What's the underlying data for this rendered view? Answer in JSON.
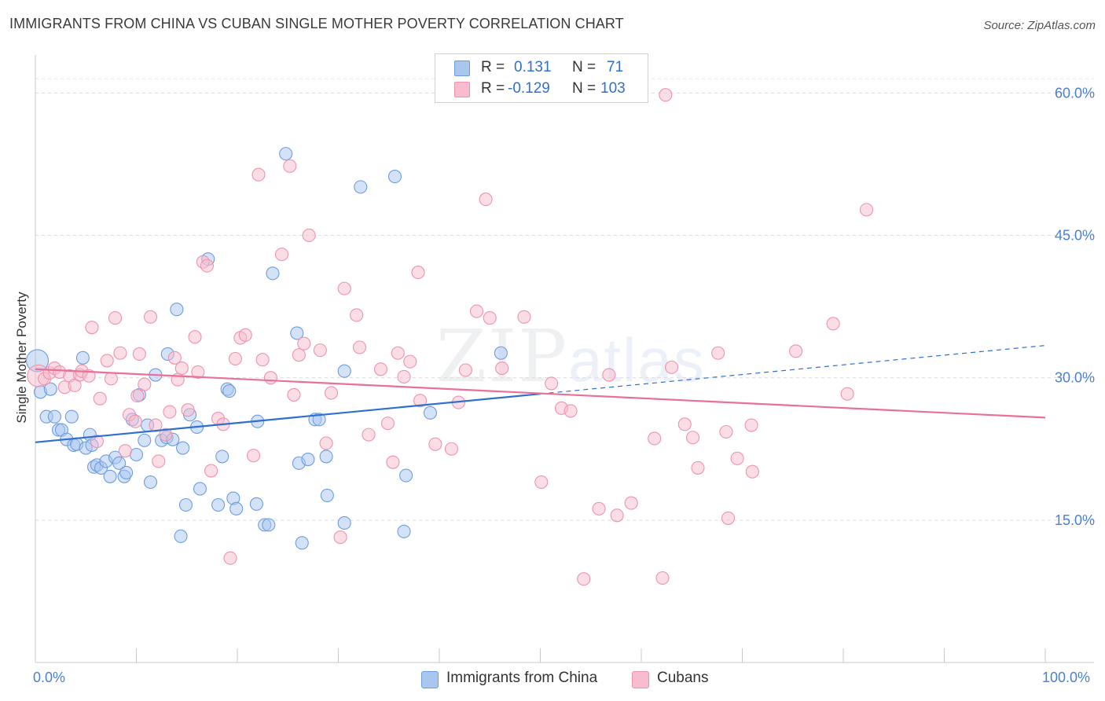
{
  "title": "IMMIGRANTS FROM CHINA VS CUBAN SINGLE MOTHER POVERTY CORRELATION CHART",
  "source": "Source: ZipAtlas.com",
  "watermark": {
    "zip": "ZIP",
    "atlas": "atlas"
  },
  "legend": {
    "rows": [
      {
        "r_label": "R =",
        "r_value": " 0.131",
        "n_label": "N =",
        "n_value": " 71",
        "color": "#a9c6ef",
        "border": "#6d9de0"
      },
      {
        "r_label": "R =",
        "r_value": "-0.129",
        "n_label": "N =",
        "n_value": "103",
        "color": "#f7bccd",
        "border": "#ee93ae"
      }
    ]
  },
  "bottom_legend": [
    {
      "label": "Immigrants from China",
      "color": "#a9c6ef",
      "border": "#6d9de0"
    },
    {
      "label": "Cubans",
      "color": "#f7bccd",
      "border": "#ee93ae"
    }
  ],
  "chart_data": {
    "type": "scatter",
    "ylabel": "Single Mother Poverty",
    "x_tick_labels": {
      "left": "0.0%",
      "right": "100.0%"
    },
    "xlim": [
      0,
      100
    ],
    "ylim": [
      0,
      64
    ],
    "yticks": [
      {
        "value": 15,
        "label": "15.0%"
      },
      {
        "value": 30,
        "label": "30.0%"
      },
      {
        "value": 45,
        "label": "45.0%"
      },
      {
        "value": 60,
        "label": "60.0%"
      }
    ],
    "grid": "horizontal dashed",
    "series": [
      {
        "name": "Immigrants from China",
        "color": "#a9c6ef",
        "edge": "#6d9de0",
        "trend": {
          "x": [
            0,
            50
          ],
          "y": [
            23.2,
            28.3
          ],
          "color": "#2f6fd0",
          "dashed_extension_to": [
            100,
            33.4
          ]
        },
        "points": [
          [
            0.2,
            31.8
          ],
          [
            0.5,
            28.5
          ],
          [
            1.1,
            25.9
          ],
          [
            1.5,
            28.8
          ],
          [
            1.9,
            25.9
          ],
          [
            2.3,
            24.5
          ],
          [
            2.6,
            24.5
          ],
          [
            3.1,
            23.5
          ],
          [
            3.6,
            25.9
          ],
          [
            3.8,
            22.9
          ],
          [
            4.1,
            23.0
          ],
          [
            4.7,
            32.1
          ],
          [
            5.0,
            22.6
          ],
          [
            5.4,
            24.0
          ],
          [
            5.6,
            22.9
          ],
          [
            5.8,
            20.6
          ],
          [
            6.1,
            20.8
          ],
          [
            6.5,
            20.5
          ],
          [
            7.0,
            21.2
          ],
          [
            7.4,
            19.6
          ],
          [
            7.9,
            21.6
          ],
          [
            8.3,
            21.0
          ],
          [
            8.8,
            19.6
          ],
          [
            9.0,
            20.0
          ],
          [
            9.6,
            25.6
          ],
          [
            10.0,
            21.9
          ],
          [
            10.3,
            28.2
          ],
          [
            10.8,
            23.4
          ],
          [
            11.1,
            25.0
          ],
          [
            11.4,
            19.0
          ],
          [
            11.9,
            30.3
          ],
          [
            12.5,
            23.4
          ],
          [
            13.0,
            23.7
          ],
          [
            13.1,
            32.5
          ],
          [
            13.6,
            23.5
          ],
          [
            14.0,
            37.2
          ],
          [
            14.4,
            13.3
          ],
          [
            14.6,
            22.6
          ],
          [
            14.9,
            16.6
          ],
          [
            15.3,
            26.1
          ],
          [
            16.0,
            24.8
          ],
          [
            16.3,
            18.3
          ],
          [
            17.1,
            42.5
          ],
          [
            18.1,
            16.6
          ],
          [
            18.5,
            21.7
          ],
          [
            19.0,
            28.8
          ],
          [
            19.2,
            28.6
          ],
          [
            19.6,
            17.3
          ],
          [
            19.9,
            16.2
          ],
          [
            21.9,
            16.7
          ],
          [
            22.0,
            25.4
          ],
          [
            22.7,
            14.5
          ],
          [
            23.1,
            14.5
          ],
          [
            23.5,
            41.0
          ],
          [
            24.8,
            53.6
          ],
          [
            25.9,
            34.7
          ],
          [
            26.1,
            21.0
          ],
          [
            26.4,
            12.6
          ],
          [
            27.0,
            21.4
          ],
          [
            27.7,
            25.6
          ],
          [
            28.1,
            25.6
          ],
          [
            28.8,
            21.7
          ],
          [
            28.9,
            17.6
          ],
          [
            30.6,
            30.7
          ],
          [
            30.6,
            14.7
          ],
          [
            32.2,
            50.1
          ],
          [
            35.6,
            51.2
          ],
          [
            36.5,
            13.8
          ],
          [
            36.7,
            19.7
          ],
          [
            39.1,
            26.3
          ],
          [
            46.1,
            32.6
          ]
        ]
      },
      {
        "name": "Cubans",
        "color": "#f7bccd",
        "edge": "#ee93ae",
        "trend": {
          "x": [
            0,
            100
          ],
          "y": [
            30.9,
            25.8
          ],
          "color": "#e8709a"
        },
        "points": [
          [
            0.3,
            30.2
          ],
          [
            0.9,
            29.9
          ],
          [
            1.4,
            30.5
          ],
          [
            1.9,
            31.0
          ],
          [
            2.4,
            30.6
          ],
          [
            2.9,
            29.0
          ],
          [
            3.4,
            30.2
          ],
          [
            3.9,
            29.2
          ],
          [
            4.4,
            30.3
          ],
          [
            4.6,
            30.7
          ],
          [
            5.3,
            30.2
          ],
          [
            5.6,
            35.3
          ],
          [
            6.1,
            23.3
          ],
          [
            6.4,
            27.8
          ],
          [
            7.1,
            31.8
          ],
          [
            7.5,
            29.9
          ],
          [
            7.9,
            36.3
          ],
          [
            8.4,
            32.6
          ],
          [
            8.9,
            22.3
          ],
          [
            9.3,
            26.1
          ],
          [
            9.9,
            25.4
          ],
          [
            10.1,
            28.1
          ],
          [
            10.3,
            32.5
          ],
          [
            10.8,
            29.3
          ],
          [
            11.4,
            36.4
          ],
          [
            11.9,
            25.0
          ],
          [
            12.2,
            21.2
          ],
          [
            12.9,
            24.0
          ],
          [
            13.3,
            26.4
          ],
          [
            13.8,
            32.1
          ],
          [
            14.1,
            29.8
          ],
          [
            14.5,
            31.0
          ],
          [
            15.1,
            26.6
          ],
          [
            15.8,
            34.3
          ],
          [
            16.1,
            30.6
          ],
          [
            16.6,
            42.2
          ],
          [
            17.0,
            41.8
          ],
          [
            17.4,
            20.2
          ],
          [
            18.1,
            25.7
          ],
          [
            18.6,
            25.1
          ],
          [
            19.3,
            11.0
          ],
          [
            19.8,
            32.0
          ],
          [
            20.3,
            34.2
          ],
          [
            20.8,
            34.5
          ],
          [
            21.6,
            21.8
          ],
          [
            22.1,
            51.4
          ],
          [
            22.5,
            31.9
          ],
          [
            23.3,
            30.0
          ],
          [
            24.4,
            43.0
          ],
          [
            25.2,
            52.3
          ],
          [
            25.6,
            28.2
          ],
          [
            26.1,
            32.4
          ],
          [
            26.6,
            33.6
          ],
          [
            27.1,
            45.0
          ],
          [
            28.2,
            32.9
          ],
          [
            28.8,
            23.1
          ],
          [
            29.3,
            28.4
          ],
          [
            30.2,
            13.2
          ],
          [
            30.6,
            39.4
          ],
          [
            31.8,
            36.6
          ],
          [
            32.1,
            33.2
          ],
          [
            33.0,
            24.0
          ],
          [
            34.2,
            30.9
          ],
          [
            34.9,
            25.2
          ],
          [
            35.4,
            21.1
          ],
          [
            35.9,
            32.6
          ],
          [
            36.5,
            30.1
          ],
          [
            37.1,
            31.7
          ],
          [
            37.9,
            41.1
          ],
          [
            38.1,
            27.6
          ],
          [
            39.6,
            23.0
          ],
          [
            41.2,
            22.5
          ],
          [
            41.9,
            27.4
          ],
          [
            42.6,
            30.8
          ],
          [
            43.7,
            37.0
          ],
          [
            44.6,
            48.8
          ],
          [
            45.0,
            36.3
          ],
          [
            46.2,
            31.0
          ],
          [
            48.4,
            36.4
          ],
          [
            50.1,
            19.0
          ],
          [
            51.1,
            29.4
          ],
          [
            52.1,
            26.8
          ],
          [
            53.0,
            26.5
          ],
          [
            54.3,
            8.8
          ],
          [
            55.8,
            16.2
          ],
          [
            56.8,
            30.3
          ],
          [
            57.6,
            15.5
          ],
          [
            59.0,
            16.8
          ],
          [
            61.3,
            23.6
          ],
          [
            62.1,
            8.9
          ],
          [
            62.4,
            59.8
          ],
          [
            63.0,
            31.1
          ],
          [
            64.3,
            25.1
          ],
          [
            65.1,
            23.7
          ],
          [
            65.6,
            20.5
          ],
          [
            67.6,
            32.6
          ],
          [
            68.4,
            24.3
          ],
          [
            68.6,
            15.2
          ],
          [
            69.5,
            21.5
          ],
          [
            71.0,
            20.1
          ],
          [
            70.9,
            25.0
          ],
          [
            75.3,
            32.8
          ],
          [
            79.0,
            35.7
          ],
          [
            80.4,
            28.3
          ],
          [
            82.3,
            47.7
          ]
        ]
      }
    ]
  }
}
